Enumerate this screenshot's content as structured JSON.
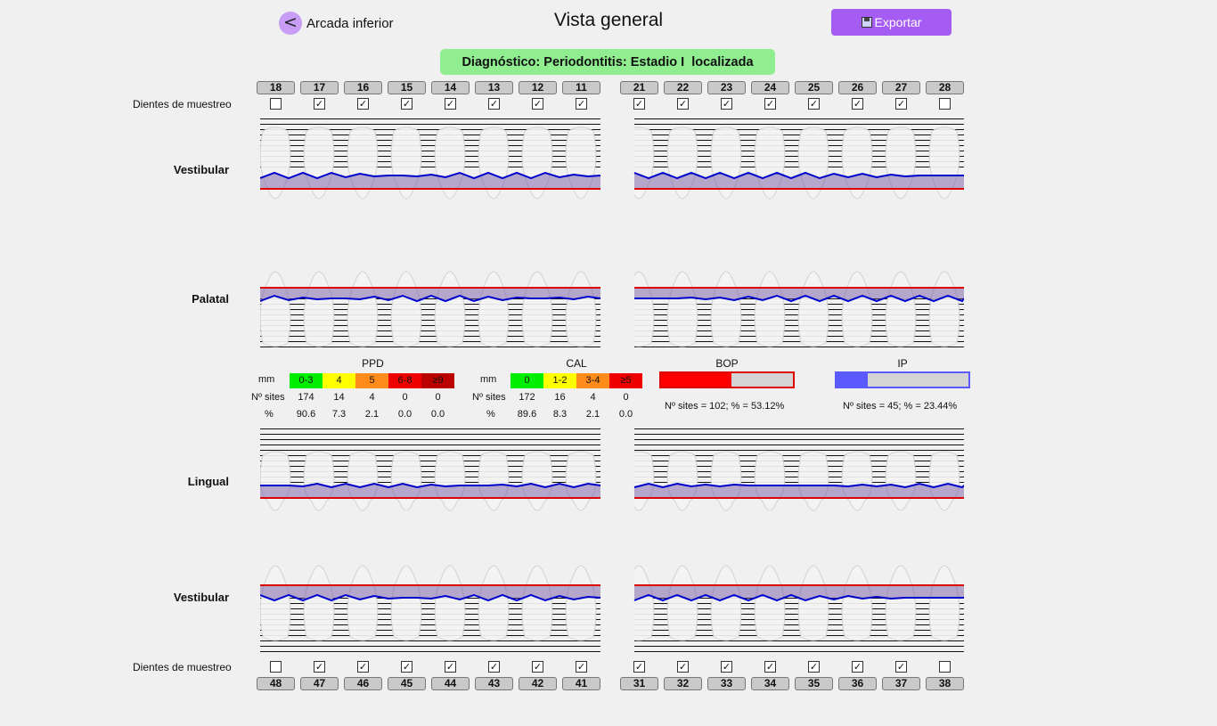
{
  "header": {
    "back_icon": "<",
    "back_label": "Arcada inferior",
    "title": "Vista general",
    "export_label": "Exportar"
  },
  "diagnosis": "Diagnóstico: Periodontitis: Estadio I  localizada",
  "upper": {
    "sample_label": "Dientes de muestreo",
    "teeth": [
      "18",
      "17",
      "16",
      "15",
      "14",
      "13",
      "12",
      "11",
      "21",
      "22",
      "23",
      "24",
      "25",
      "26",
      "27",
      "28"
    ],
    "checked": [
      false,
      true,
      true,
      true,
      true,
      true,
      true,
      true,
      true,
      true,
      true,
      true,
      true,
      true,
      true,
      false
    ],
    "vestibular_label": "Vestibular",
    "palatal_label": "Palatal"
  },
  "lower": {
    "sample_label": "Dientes de muestreo",
    "teeth": [
      "48",
      "47",
      "46",
      "45",
      "44",
      "43",
      "42",
      "41",
      "31",
      "32",
      "33",
      "34",
      "35",
      "36",
      "37",
      "38"
    ],
    "checked": [
      false,
      true,
      true,
      true,
      true,
      true,
      true,
      true,
      true,
      true,
      true,
      true,
      true,
      true,
      true,
      false
    ],
    "lingual_label": "Lingual",
    "vestibular_label": "Vestibular"
  },
  "ppd": {
    "title": "PPD",
    "mm_label": "mm",
    "sites_label": "Nº sites",
    "pct_label": "%",
    "categories": [
      "0-3",
      "4",
      "5",
      "6-8",
      "≥9"
    ],
    "colors": [
      "#00ee00",
      "#ffff00",
      "#ff8c1a",
      "#ee0000",
      "#bb0000"
    ],
    "sites": [
      "174",
      "14",
      "4",
      "0",
      "0"
    ],
    "pct": [
      "90.6",
      "7.3",
      "2.1",
      "0.0",
      "0.0"
    ]
  },
  "cal": {
    "title": "CAL",
    "mm_label": "mm",
    "sites_label": "Nº sites",
    "pct_label": "%",
    "categories": [
      "0",
      "1-2",
      "3-4",
      "≥5"
    ],
    "colors": [
      "#00ee00",
      "#ffff00",
      "#ff8c1a",
      "#ee0000"
    ],
    "sites": [
      "172",
      "16",
      "4",
      "0"
    ],
    "pct": [
      "89.6",
      "8.3",
      "2.1",
      "0.0"
    ]
  },
  "bop": {
    "title": "BOP",
    "text": "Nº sites = 102; % = 53.12%",
    "fraction": 0.5312,
    "color": "#ff0000"
  },
  "ip": {
    "title": "IP",
    "text": "Nº sites = 45; % = 23.44%",
    "fraction": 0.2344,
    "color": "#5a5aff"
  },
  "colors": {
    "gingival_line": "#dd0000",
    "probing_line": "#0000cc",
    "pocket_fill": "#6a4c9c"
  }
}
